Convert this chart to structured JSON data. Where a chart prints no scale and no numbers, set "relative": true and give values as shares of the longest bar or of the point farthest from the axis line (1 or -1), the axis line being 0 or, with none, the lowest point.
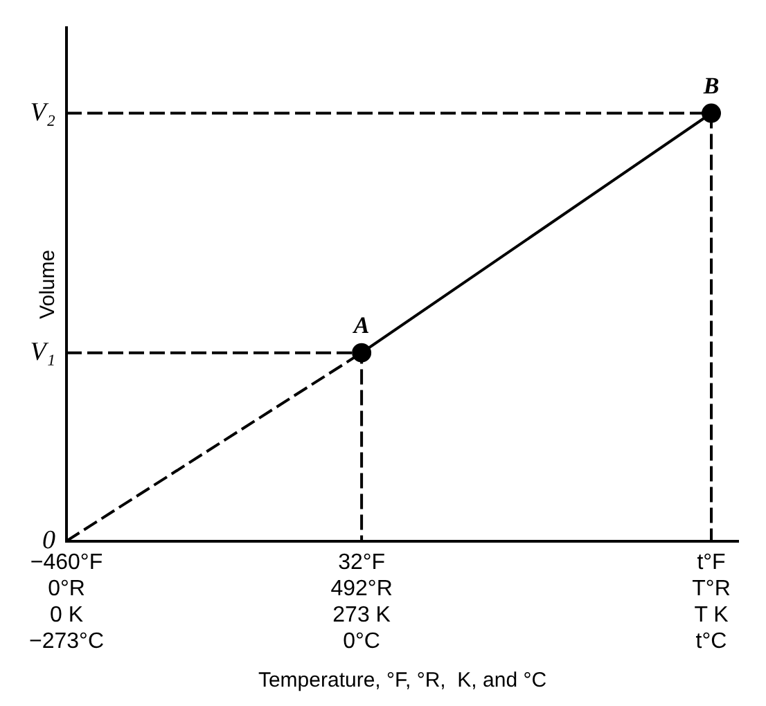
{
  "chart_data": {
    "type": "line",
    "relative": true,
    "xlabel": "Temperature, °F, °R,  K, and °C",
    "ylabel": "Volume",
    "xlim": [
      -460,
      660
    ],
    "xticks": [
      {
        "value": -460,
        "label": "−460°F"
      },
      {
        "value": 32,
        "label": "32°F"
      },
      {
        "value": 615,
        "label": "t°F"
      }
    ],
    "series": [
      {
        "type": "line",
        "color": "#000000",
        "x": [
          -460,
          32
        ],
        "values": [
          0,
          0.44
        ],
        "line_style": "dashed"
      },
      {
        "type": "line",
        "color": "#000000",
        "x": [
          32,
          615
        ],
        "values": [
          0.44,
          1
        ],
        "line_style": "solid",
        "marker": "circle"
      },
      {
        "type": "line",
        "color": "#000000",
        "x": [
          -460,
          32,
          32
        ],
        "values": [
          0.44,
          0.44,
          0
        ],
        "line_style": "dashed"
      },
      {
        "type": "line",
        "color": "#000000",
        "x": [
          -460,
          615
        ],
        "values": [
          1,
          1
        ],
        "line_style": "dashed"
      },
      {
        "type": "line",
        "color": "#000000",
        "x": [
          615,
          615
        ],
        "values": [
          1,
          0
        ],
        "line_style": "dashed"
      }
    ],
    "annotations": [
      {
        "text": "A",
        "x": 32,
        "y": 0.44
      },
      {
        "text": "B",
        "x": 615,
        "y": 1
      },
      {
        "text": "0",
        "x": -460,
        "y": 0
      },
      {
        "text": "V₁",
        "x": -460,
        "y": 0.44
      },
      {
        "text": "V₂",
        "x": -460,
        "y": 1
      },
      "0°R",
      "0 K",
      "−273°C",
      "492°R",
      "273 K",
      "0°C",
      "T°R",
      "T K",
      "t°C"
    ]
  }
}
